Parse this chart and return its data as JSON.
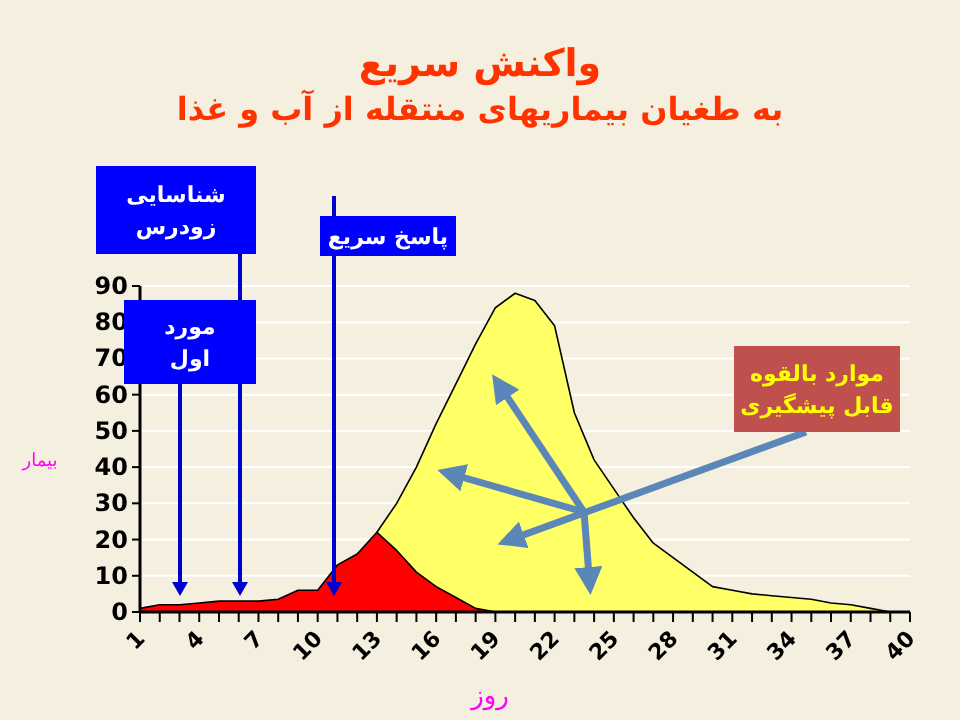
{
  "chart_data": {
    "type": "area",
    "title": "واکنش سریع",
    "subtitle": "به طغیان بیماریهای منتقله از آب و غذا",
    "xlabel": "روز",
    "ylabel": "بیمار",
    "xlim": [
      1,
      40
    ],
    "ylim": [
      0,
      90
    ],
    "xticks": [
      1,
      {
        "value": 2,
        "label": null
      },
      {
        "value": 3,
        "label": null
      },
      4,
      {
        "value": 5,
        "label": null
      },
      {
        "value": 6,
        "label": null
      },
      7,
      {
        "value": 8,
        "label": null
      },
      {
        "value": 9,
        "label": null
      },
      10,
      {
        "value": 11,
        "label": null
      },
      {
        "value": 12,
        "label": null
      },
      13,
      {
        "value": 14,
        "label": null
      },
      {
        "value": 15,
        "label": null
      },
      16,
      {
        "value": 17,
        "label": null
      },
      {
        "value": 18,
        "label": null
      },
      19,
      {
        "value": 20,
        "label": null
      },
      {
        "value": 21,
        "label": null
      },
      22,
      {
        "value": 23,
        "label": null
      },
      {
        "value": 24,
        "label": null
      },
      25,
      {
        "value": 26,
        "label": null
      },
      {
        "value": 27,
        "label": null
      },
      28,
      {
        "value": 29,
        "label": null
      },
      {
        "value": 30,
        "label": null
      },
      31,
      {
        "value": 32,
        "label": null
      },
      {
        "value": 33,
        "label": null
      },
      34,
      {
        "value": 35,
        "label": null
      },
      {
        "value": 36,
        "label": null
      },
      37,
      {
        "value": 38,
        "label": null
      },
      {
        "value": 39,
        "label": null
      },
      40
    ],
    "yticks": [
      0,
      10,
      20,
      30,
      40,
      50,
      60,
      70,
      80,
      90
    ],
    "grid": "y",
    "series": [
      {
        "color": "#ffff66",
        "x": [
          13,
          14,
          15,
          16,
          17,
          18,
          19,
          20,
          21,
          22,
          23,
          24,
          25,
          26,
          27,
          28,
          29,
          30,
          31,
          32,
          33,
          34,
          35,
          36,
          37,
          38,
          39
        ],
        "values": [
          22,
          30,
          40,
          52,
          63,
          74,
          84,
          88,
          86,
          79,
          55,
          42,
          34,
          26,
          19,
          15,
          11,
          7,
          6,
          5,
          4.5,
          4,
          3.5,
          2.5,
          2,
          1,
          0
        ]
      },
      {
        "color": "#ff0000",
        "x": [
          1,
          2,
          3,
          4,
          5,
          6,
          7,
          8,
          9,
          10,
          11,
          12,
          13,
          14,
          15,
          16,
          17,
          18,
          19
        ],
        "values": [
          1,
          2,
          2,
          2.5,
          3,
          3,
          3,
          3.5,
          6,
          6,
          13,
          16,
          22,
          17,
          11,
          7,
          4,
          1,
          0
        ]
      }
    ],
    "annotations": [
      "شناسایی\nزودرس",
      "مورد\nاول",
      "پاسخ سریع",
      "موارد بالقوه\nقابل پیشگیری"
    ]
  }
}
